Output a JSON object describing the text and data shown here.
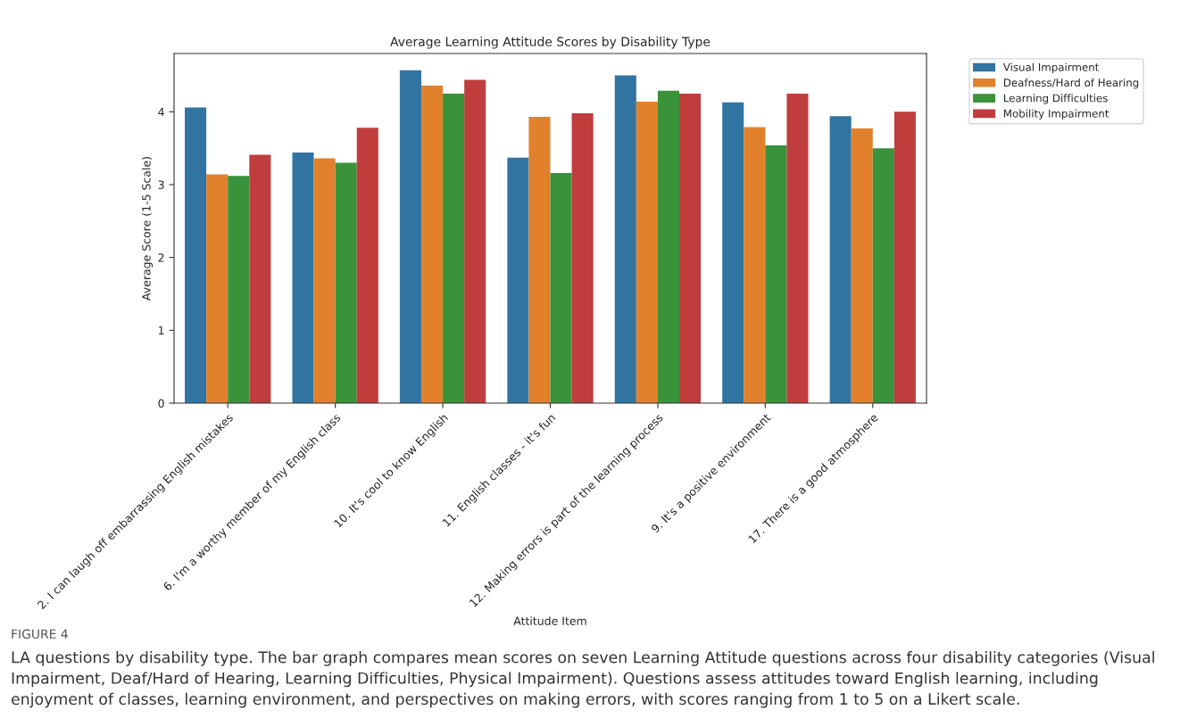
{
  "chart_data": {
    "type": "bar",
    "title": "Average Learning Attitude Scores by Disability Type",
    "xlabel": "Attitude Item",
    "ylabel": "Average Score (1-5 Scale)",
    "categories": [
      "2. I can laugh off embarrassing English mistakes",
      "6. I'm a worthy member of my English class",
      "10. It's cool to know English",
      "11. English classes - it's fun",
      "12. Making errors is part of the learning process",
      "9. It's a positive environment",
      "17. There is a good atmosphere"
    ],
    "series": [
      {
        "name": "Visual Impairment",
        "color": "#3274a1",
        "values": [
          4.06,
          3.44,
          4.57,
          3.37,
          4.5,
          4.13,
          3.94
        ]
      },
      {
        "name": "Deafness/Hard of Hearing",
        "color": "#e1812c",
        "values": [
          3.14,
          3.36,
          4.36,
          3.93,
          4.14,
          3.79,
          3.77
        ]
      },
      {
        "name": "Learning Difficulties",
        "color": "#3a923a",
        "values": [
          3.12,
          3.3,
          4.25,
          3.16,
          4.29,
          3.54,
          3.5
        ]
      },
      {
        "name": "Mobility Impairment",
        "color": "#c03d3e",
        "values": [
          3.41,
          3.78,
          4.44,
          3.98,
          4.25,
          4.25,
          4.0
        ]
      }
    ],
    "ylim": [
      0,
      4.8
    ],
    "yticks": [
      0,
      1,
      2,
      3,
      4
    ],
    "grid": false,
    "legend": "top right",
    "annotations": [
      "FIGURE 4",
      "LA questions by disability type. The bar graph compares mean scores on seven Learning Attitude questions across four disability categories (Visual Impairment, Deaf/Hard of Hearing, Learning Difficulties, Physical Impairment). Questions assess attitudes toward English learning, including enjoyment of classes, learning environment, and perspectives on making errors, with scores ranging from 1 to 5 on a Likert scale."
    ]
  }
}
